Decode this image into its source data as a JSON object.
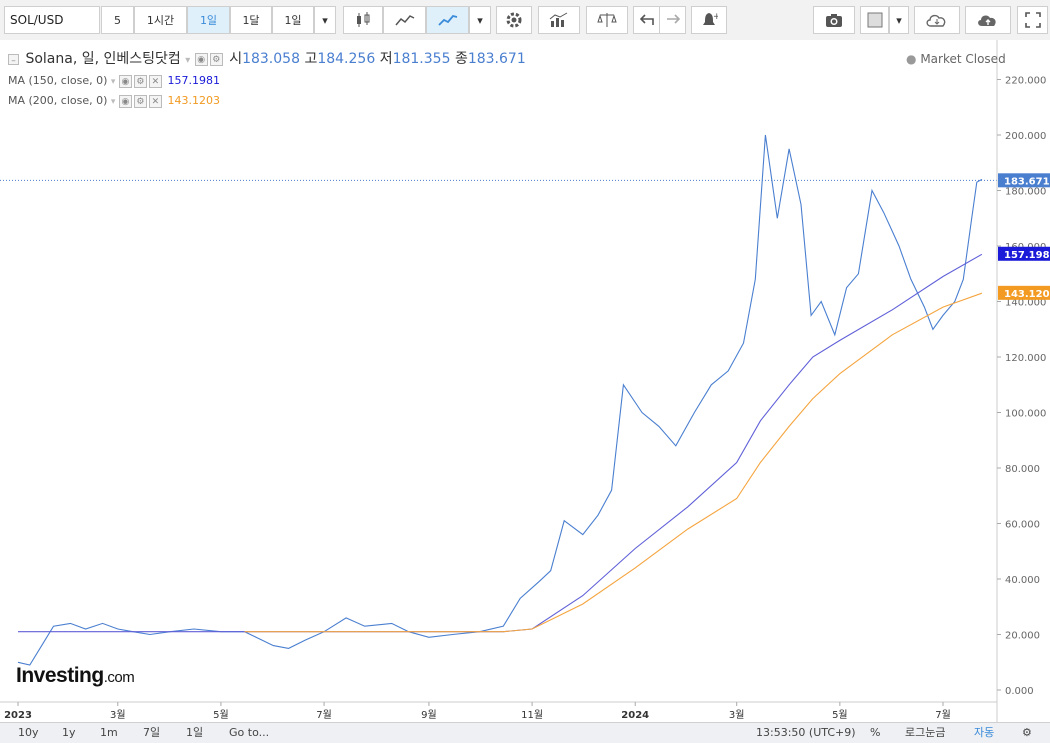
{
  "toolbar": {
    "symbol": "SOL/USD",
    "interval_number": "5",
    "interval_1h": "1시간",
    "interval_1d": "1일",
    "interval_1mo": "1달",
    "interval_select": "1일"
  },
  "legend": {
    "title": "Solana, 일, 인베스팅닷컴",
    "open_label": "시",
    "open_value": "183.058",
    "high_label": "고",
    "high_value": "184.256",
    "low_label": "저",
    "low_value": "181.355",
    "close_label": "종",
    "close_value": "183.671",
    "market_status": "Market Closed",
    "ma150_label": "MA (150, close, 0)",
    "ma150_value": "157.1981",
    "ma200_label": "MA (200, close, 0)",
    "ma200_value": "143.1203"
  },
  "bottom": {
    "ranges": [
      "10y",
      "1y",
      "1m",
      "7일",
      "1일"
    ],
    "goto": "Go to...",
    "time": "13:53:50 (UTC+9)",
    "percent": "%",
    "log": "로그눈금",
    "auto": "자동"
  },
  "logo": {
    "main": "Investing",
    "suffix": ".com"
  },
  "colors": {
    "price": "#4a7fd0",
    "ma150": "#6060d8",
    "ma200": "#f5a540",
    "ma150_tag": "#1a1ad8",
    "ma200_tag": "#f29a22",
    "price_tag": "#4a7fd0"
  },
  "chart_data": {
    "type": "line",
    "ylim": [
      0,
      230
    ],
    "y_ticks": [
      "0.000",
      "20.000",
      "40.000",
      "60.000",
      "80.000",
      "100.000",
      "120.000",
      "140.000",
      "160.000",
      "180.000",
      "200.000",
      "220.000"
    ],
    "x_ticks": [
      {
        "label": "2023",
        "date": "2023-01-01"
      },
      {
        "label": "3월",
        "date": "2023-03-01"
      },
      {
        "label": "5월",
        "date": "2023-05-01"
      },
      {
        "label": "7월",
        "date": "2023-07-01"
      },
      {
        "label": "9월",
        "date": "2023-09-01"
      },
      {
        "label": "11월",
        "date": "2023-11-01"
      },
      {
        "label": "2024",
        "date": "2024-01-01"
      },
      {
        "label": "3월",
        "date": "2024-03-01"
      },
      {
        "label": "5월",
        "date": "2024-05-01"
      },
      {
        "label": "7월",
        "date": "2024-07-01"
      }
    ],
    "series": [
      {
        "name": "Solana",
        "x": [
          "2023-01-01",
          "2023-01-08",
          "2023-01-15",
          "2023-01-22",
          "2023-02-01",
          "2023-02-10",
          "2023-02-20",
          "2023-03-01",
          "2023-03-10",
          "2023-03-20",
          "2023-04-01",
          "2023-04-15",
          "2023-05-01",
          "2023-05-15",
          "2023-06-01",
          "2023-06-10",
          "2023-06-20",
          "2023-07-01",
          "2023-07-14",
          "2023-07-25",
          "2023-08-10",
          "2023-08-20",
          "2023-09-01",
          "2023-09-15",
          "2023-10-01",
          "2023-10-15",
          "2023-10-25",
          "2023-11-05",
          "2023-11-12",
          "2023-11-20",
          "2023-12-01",
          "2023-12-10",
          "2023-12-18",
          "2023-12-25",
          "2024-01-05",
          "2024-01-15",
          "2024-01-25",
          "2024-02-05",
          "2024-02-15",
          "2024-02-25",
          "2024-03-05",
          "2024-03-12",
          "2024-03-18",
          "2024-03-25",
          "2024-04-01",
          "2024-04-08",
          "2024-04-14",
          "2024-04-20",
          "2024-04-28",
          "2024-05-05",
          "2024-05-12",
          "2024-05-20",
          "2024-05-27",
          "2024-06-05",
          "2024-06-12",
          "2024-06-20",
          "2024-06-25",
          "2024-07-01",
          "2024-07-08",
          "2024-07-13",
          "2024-07-18",
          "2024-07-21",
          "2024-07-24"
        ],
        "values": [
          10,
          9,
          16,
          23,
          24,
          22,
          24,
          22,
          21,
          20,
          21,
          22,
          21,
          21,
          16,
          15,
          18,
          21,
          26,
          23,
          24,
          21,
          19,
          20,
          21,
          23,
          33,
          39,
          43,
          61,
          56,
          63,
          72,
          110,
          100,
          95,
          88,
          100,
          110,
          115,
          125,
          148,
          200,
          170,
          195,
          175,
          135,
          140,
          128,
          145,
          150,
          180,
          172,
          160,
          148,
          138,
          130,
          135,
          140,
          148,
          170,
          183,
          184
        ]
      },
      {
        "name": "MA (150, close, 0)",
        "x": [
          "2023-01-01",
          "2023-03-01",
          "2023-05-01",
          "2023-07-01",
          "2023-09-01",
          "2023-10-15",
          "2023-11-01",
          "2023-12-01",
          "2024-01-01",
          "2024-02-01",
          "2024-03-01",
          "2024-03-15",
          "2024-04-01",
          "2024-04-15",
          "2024-05-01",
          "2024-06-01",
          "2024-07-01",
          "2024-07-24"
        ],
        "values": [
          21,
          21,
          21,
          21,
          21,
          21,
          22,
          34,
          51,
          66,
          82,
          97,
          110,
          120,
          126,
          137,
          149,
          157
        ]
      },
      {
        "name": "MA (200, close, 0)",
        "x": [
          "2023-05-15",
          "2023-07-01",
          "2023-09-01",
          "2023-10-15",
          "2023-11-01",
          "2023-12-01",
          "2024-01-01",
          "2024-02-01",
          "2024-03-01",
          "2024-03-15",
          "2024-04-01",
          "2024-04-15",
          "2024-05-01",
          "2024-06-01",
          "2024-07-01",
          "2024-07-24"
        ],
        "values": [
          21,
          21,
          21,
          21,
          22,
          31,
          44,
          58,
          69,
          82,
          95,
          105,
          114,
          128,
          138,
          143
        ]
      }
    ],
    "price_tag": "183.671",
    "ma150_tag": "157.198",
    "ma200_tag": "143.120"
  }
}
